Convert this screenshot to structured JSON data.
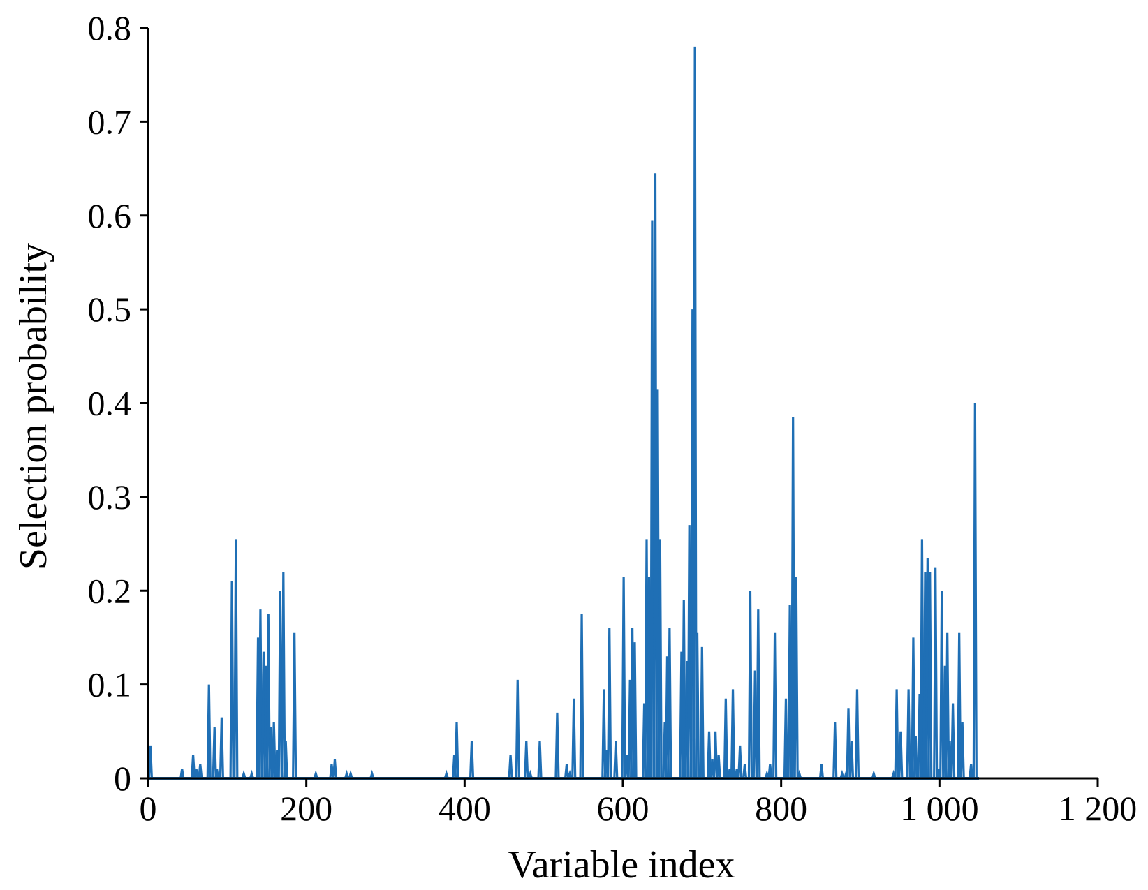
{
  "chart_data": {
    "type": "line",
    "title": "",
    "xlabel": "Variable index",
    "ylabel": "Selection probability",
    "xlim": [
      0,
      1200
    ],
    "ylim": [
      0,
      0.8
    ],
    "x_ticks": [
      0,
      200,
      400,
      600,
      800,
      1000,
      1200
    ],
    "x_tick_labels": [
      "0",
      "200",
      "400",
      "600",
      "800",
      "1 000",
      "1 200"
    ],
    "y_ticks": [
      0,
      0.1,
      0.2,
      0.3,
      0.4,
      0.5,
      0.6,
      0.7,
      0.8
    ],
    "y_tick_labels": [
      "0",
      "0.1",
      "0.2",
      "0.3",
      "0.4",
      "0.5",
      "0.6",
      "0.7",
      "0.8"
    ],
    "grid": false,
    "legend": false,
    "line_color": "#1f6fb5",
    "series_extent": [
      0,
      1050
    ],
    "spikes": [
      [
        3,
        0.035
      ],
      [
        43,
        0.01
      ],
      [
        57,
        0.025
      ],
      [
        61,
        0.01
      ],
      [
        66,
        0.015
      ],
      [
        77,
        0.1
      ],
      [
        84,
        0.055
      ],
      [
        87,
        0.01
      ],
      [
        93,
        0.065
      ],
      [
        106,
        0.21
      ],
      [
        111,
        0.255
      ],
      [
        121,
        0.005
      ],
      [
        131,
        0.005
      ],
      [
        139,
        0.15
      ],
      [
        142,
        0.18
      ],
      [
        146,
        0.135
      ],
      [
        149,
        0.12
      ],
      [
        152,
        0.175
      ],
      [
        155,
        0.055
      ],
      [
        159,
        0.06
      ],
      [
        163,
        0.03
      ],
      [
        167,
        0.2
      ],
      [
        171,
        0.22
      ],
      [
        174,
        0.04
      ],
      [
        185,
        0.155
      ],
      [
        212,
        0.005
      ],
      [
        232,
        0.015
      ],
      [
        236,
        0.02
      ],
      [
        251,
        0.005
      ],
      [
        256,
        0.005
      ],
      [
        283,
        0.005
      ],
      [
        377,
        0.005
      ],
      [
        387,
        0.025
      ],
      [
        390,
        0.06
      ],
      [
        409,
        0.04
      ],
      [
        458,
        0.025
      ],
      [
        467,
        0.105
      ],
      [
        478,
        0.04
      ],
      [
        483,
        0.005
      ],
      [
        495,
        0.04
      ],
      [
        517,
        0.07
      ],
      [
        529,
        0.015
      ],
      [
        533,
        0.005
      ],
      [
        538,
        0.085
      ],
      [
        548,
        0.175
      ],
      [
        576,
        0.095
      ],
      [
        579,
        0.03
      ],
      [
        583,
        0.16
      ],
      [
        591,
        0.04
      ],
      [
        601,
        0.215
      ],
      [
        605,
        0.025
      ],
      [
        609,
        0.105
      ],
      [
        612,
        0.16
      ],
      [
        615,
        0.145
      ],
      [
        627,
        0.08
      ],
      [
        630,
        0.255
      ],
      [
        633,
        0.215
      ],
      [
        637,
        0.595
      ],
      [
        641,
        0.645
      ],
      [
        644,
        0.415
      ],
      [
        647,
        0.255
      ],
      [
        653,
        0.06
      ],
      [
        656,
        0.13
      ],
      [
        659,
        0.16
      ],
      [
        674,
        0.135
      ],
      [
        677,
        0.19
      ],
      [
        681,
        0.125
      ],
      [
        684,
        0.27
      ],
      [
        688,
        0.5
      ],
      [
        691,
        0.78
      ],
      [
        694,
        0.155
      ],
      [
        700,
        0.14
      ],
      [
        709,
        0.05
      ],
      [
        713,
        0.02
      ],
      [
        717,
        0.05
      ],
      [
        721,
        0.025
      ],
      [
        730,
        0.085
      ],
      [
        735,
        0.01
      ],
      [
        739,
        0.095
      ],
      [
        744,
        0.01
      ],
      [
        748,
        0.035
      ],
      [
        754,
        0.015
      ],
      [
        761,
        0.2
      ],
      [
        767,
        0.115
      ],
      [
        771,
        0.18
      ],
      [
        782,
        0.005
      ],
      [
        786,
        0.015
      ],
      [
        792,
        0.155
      ],
      [
        806,
        0.085
      ],
      [
        811,
        0.185
      ],
      [
        815,
        0.385
      ],
      [
        819,
        0.215
      ],
      [
        823,
        0.005
      ],
      [
        851,
        0.015
      ],
      [
        868,
        0.06
      ],
      [
        877,
        0.005
      ],
      [
        882,
        0.005
      ],
      [
        885,
        0.075
      ],
      [
        889,
        0.04
      ],
      [
        896,
        0.095
      ],
      [
        917,
        0.005
      ],
      [
        942,
        0.005
      ],
      [
        946,
        0.095
      ],
      [
        951,
        0.05
      ],
      [
        961,
        0.095
      ],
      [
        967,
        0.15
      ],
      [
        970,
        0.045
      ],
      [
        975,
        0.09
      ],
      [
        978,
        0.255
      ],
      [
        982,
        0.22
      ],
      [
        985,
        0.235
      ],
      [
        988,
        0.22
      ],
      [
        995,
        0.225
      ],
      [
        999,
        0.01
      ],
      [
        1003,
        0.2
      ],
      [
        1007,
        0.12
      ],
      [
        1010,
        0.155
      ],
      [
        1013,
        0.04
      ],
      [
        1017,
        0.08
      ],
      [
        1025,
        0.155
      ],
      [
        1029,
        0.06
      ],
      [
        1040,
        0.015
      ],
      [
        1045,
        0.4
      ]
    ]
  }
}
